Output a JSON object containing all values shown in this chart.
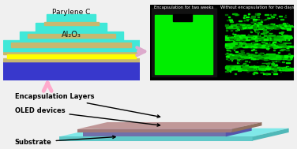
{
  "bg_color": "#f0f0f0",
  "left_panel": {
    "teal": "#40e8d8",
    "tan": "#c8b870",
    "yellow": "#ffff00",
    "blue": "#3838cc",
    "label_parylene": "Parylene C",
    "label_al2o3": "Al₂O₃"
  },
  "right_panel": {
    "label1": "Encapsulation for two weeks",
    "label2": "Without encapsulation for two days"
  },
  "bottom_panel": {
    "substrate_color": "#80e8e8",
    "substrate_dark": "#60c8c8",
    "oled_color": "#9090cc",
    "oled_dark": "#7070aa",
    "encap_color": "#c09898",
    "encap_dark": "#a07878",
    "label_encap": "Encapsulation Layers",
    "label_oled": "OLED devices",
    "label_substrate": "Substrate"
  },
  "up_arrow_color": "#ffaacc",
  "right_arrow_color": "#ddaacc"
}
